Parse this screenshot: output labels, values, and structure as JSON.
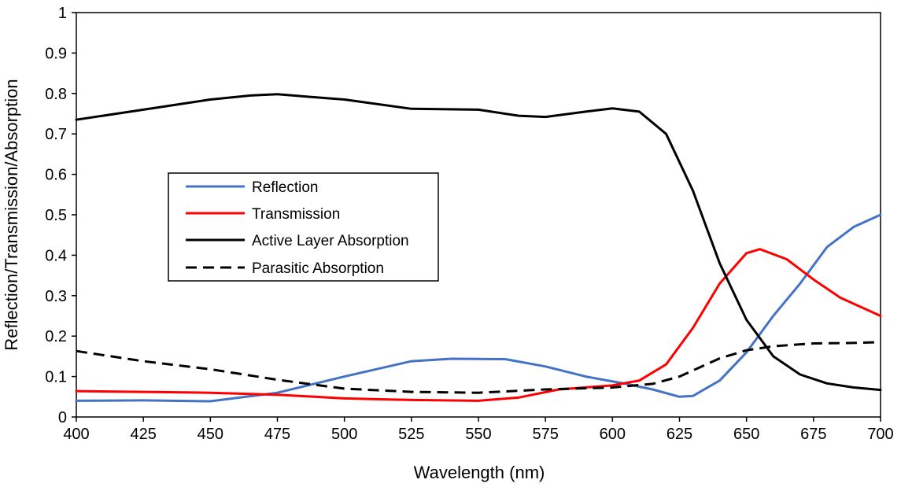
{
  "chart_data": {
    "type": "line",
    "title": "",
    "xlabel": "Wavelength (nm)",
    "ylabel": "Reflection/Transmission/Absorption",
    "xlim": [
      400,
      700
    ],
    "ylim": [
      0,
      1
    ],
    "xticks": [
      "400",
      "425",
      "450",
      "475",
      "500",
      "525",
      "550",
      "575",
      "600",
      "625",
      "650",
      "675",
      "700"
    ],
    "yticks": [
      "0",
      "0.1",
      "0.2",
      "0.3",
      "0.4",
      "0.5",
      "0.6",
      "0.7",
      "0.8",
      "0.9",
      "1"
    ],
    "grid": false,
    "legend_position": "center-left",
    "series": [
      {
        "name": "Reflection",
        "color": "#4472C4",
        "dash": "solid",
        "x": [
          400,
          425,
          450,
          475,
          500,
          525,
          540,
          560,
          575,
          590,
          605,
          615,
          625,
          630,
          640,
          650,
          660,
          670,
          680,
          690,
          700
        ],
        "y": [
          0.04,
          0.041,
          0.039,
          0.06,
          0.1,
          0.138,
          0.144,
          0.143,
          0.125,
          0.1,
          0.082,
          0.068,
          0.05,
          0.052,
          0.09,
          0.16,
          0.25,
          0.33,
          0.42,
          0.47,
          0.5
        ]
      },
      {
        "name": "Transmission",
        "color": "#FF0000",
        "dash": "solid",
        "x": [
          400,
          425,
          450,
          475,
          500,
          525,
          550,
          565,
          580,
          600,
          610,
          620,
          630,
          640,
          650,
          655,
          665,
          675,
          685,
          700
        ],
        "y": [
          0.064,
          0.062,
          0.06,
          0.055,
          0.046,
          0.042,
          0.04,
          0.048,
          0.068,
          0.078,
          0.09,
          0.13,
          0.22,
          0.33,
          0.405,
          0.415,
          0.39,
          0.34,
          0.295,
          0.25
        ]
      },
      {
        "name": "Active Layer Absorption",
        "color": "#000000",
        "dash": "solid",
        "x": [
          400,
          425,
          450,
          465,
          475,
          490,
          500,
          525,
          550,
          565,
          575,
          590,
          600,
          610,
          620,
          630,
          640,
          650,
          660,
          670,
          680,
          690,
          700
        ],
        "y": [
          0.735,
          0.76,
          0.785,
          0.795,
          0.798,
          0.79,
          0.785,
          0.762,
          0.76,
          0.745,
          0.742,
          0.755,
          0.763,
          0.755,
          0.7,
          0.56,
          0.38,
          0.24,
          0.15,
          0.105,
          0.083,
          0.073,
          0.067
        ]
      },
      {
        "name": "Parasitic Absorption",
        "color": "#000000",
        "dash": "dashed",
        "x": [
          400,
          425,
          450,
          475,
          500,
          525,
          550,
          575,
          600,
          615,
          625,
          640,
          650,
          660,
          675,
          690,
          700
        ],
        "y": [
          0.163,
          0.138,
          0.118,
          0.092,
          0.07,
          0.062,
          0.06,
          0.068,
          0.073,
          0.082,
          0.1,
          0.145,
          0.165,
          0.175,
          0.182,
          0.183,
          0.185
        ]
      }
    ]
  }
}
